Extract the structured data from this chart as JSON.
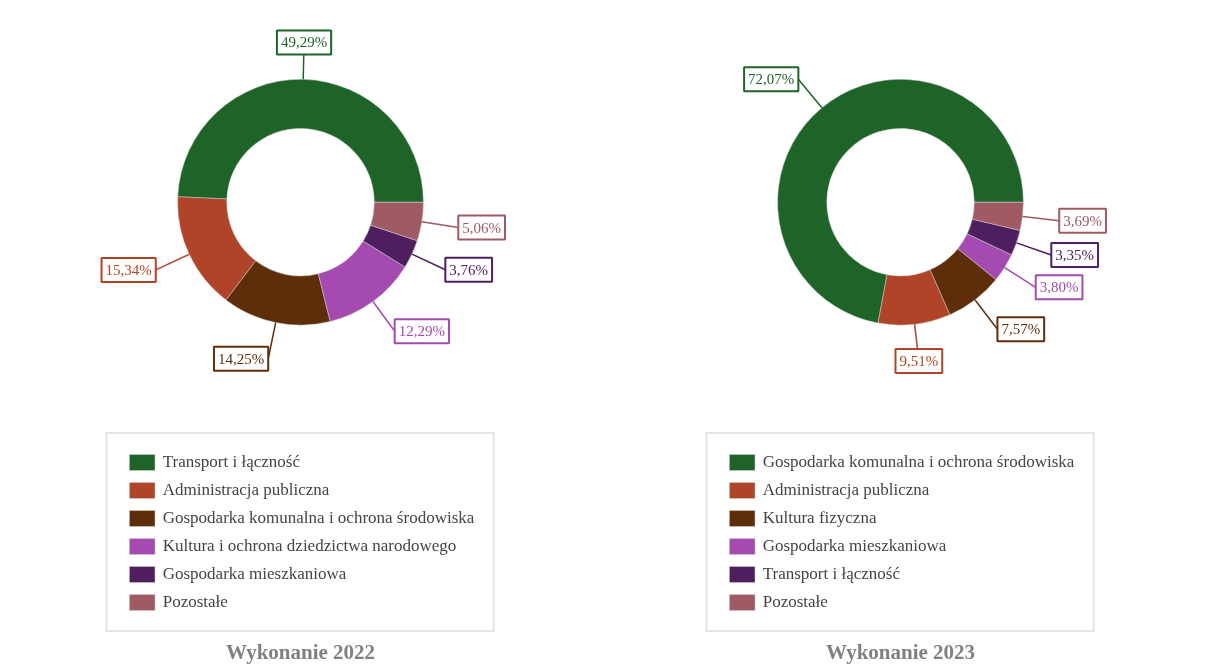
{
  "chart_data": [
    {
      "type": "donut",
      "title": "Wykonanie 2022",
      "categories": [
        "Transport i łączność",
        "Administracja publiczna",
        "Gospodarka komunalna i ochrona środowiska",
        "Kultura i ochrona dziedzictwa narodowego",
        "Gospodarka mieszkaniowa",
        "Pozostałe"
      ],
      "values": [
        49.29,
        15.34,
        14.25,
        12.29,
        3.76,
        5.06
      ],
      "value_labels": [
        "49,29%",
        "15,34%",
        "14,25%",
        "12,29%",
        "3,76%",
        "5,06%"
      ],
      "colors": [
        "#1e6428",
        "#b04428",
        "#5e2e0a",
        "#a44ab0",
        "#4e1e5e",
        "#a05a64"
      ],
      "legend": "bottom"
    },
    {
      "type": "donut",
      "title": "Wykonanie 2023",
      "categories": [
        "Gospodarka komunalna i ochrona środowiska",
        "Administracja publiczna",
        "Kultura fizyczna",
        "Gospodarka mieszkaniowa",
        "Transport i łączność",
        "Pozostałe"
      ],
      "values": [
        72.07,
        9.51,
        7.57,
        3.8,
        3.35,
        3.69
      ],
      "value_labels": [
        "72,07%",
        "9,51%",
        "7,57%",
        "3,80%",
        "3,35%",
        "3,69%"
      ],
      "colors": [
        "#1e6428",
        "#b04428",
        "#5e2e0a",
        "#a44ab0",
        "#4e1e5e",
        "#a05a64"
      ],
      "legend": "bottom"
    }
  ]
}
